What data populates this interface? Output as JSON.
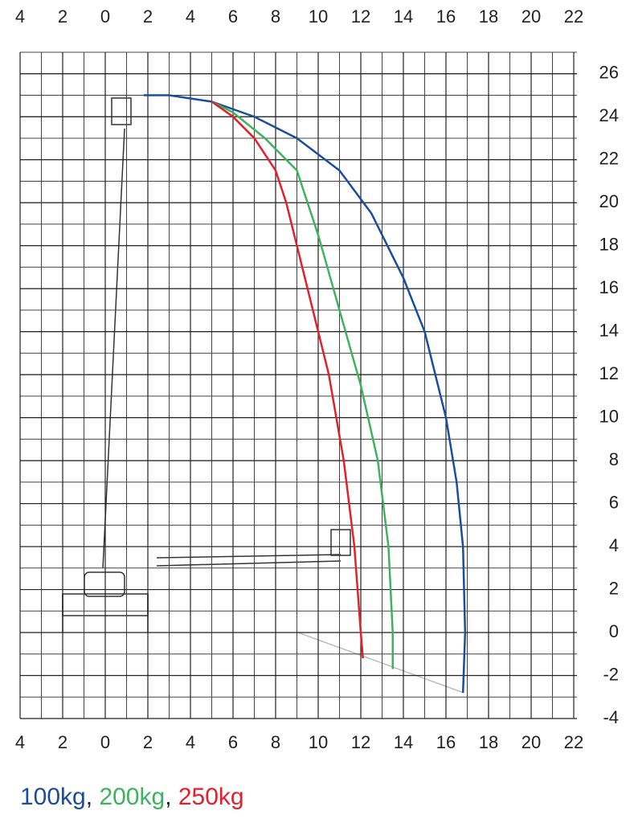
{
  "chart_data": {
    "type": "line",
    "xlim": [
      -4,
      22
    ],
    "ylim": [
      -4,
      27
    ],
    "xticks": [
      {
        "value": -4,
        "label": "4"
      },
      {
        "value": -2,
        "label": "2"
      },
      0,
      2,
      4,
      6,
      8,
      10,
      12,
      14,
      16,
      18,
      20,
      22
    ],
    "yticks": [
      -4,
      -2,
      0,
      2,
      4,
      6,
      8,
      10,
      12,
      14,
      16,
      18,
      20,
      22,
      24,
      26
    ],
    "grid": true,
    "minor_grid": true,
    "legend_separator": ",",
    "series": [
      {
        "name": "100kg",
        "color": "#1a4e9c",
        "x": [
          1.8,
          3,
          5,
          7,
          9,
          11,
          12.5,
          14,
          15,
          16,
          16.5,
          16.8,
          16.9,
          16.8
        ],
        "values": [
          25,
          25,
          24.7,
          24,
          23,
          21.5,
          19.5,
          16.5,
          14,
          10,
          7,
          4,
          0,
          -2.8
        ]
      },
      {
        "name": "200kg",
        "color": "#3cb35c",
        "x": [
          5,
          6,
          7.5,
          8.5,
          9,
          10,
          11,
          12,
          12.8,
          13.3,
          13.5,
          13.5
        ],
        "values": [
          24.7,
          24.2,
          23,
          22,
          21.5,
          18.5,
          15,
          11.5,
          8,
          4,
          0,
          -1.7
        ]
      },
      {
        "name": "250kg",
        "color": "#e3202a",
        "x": [
          5,
          6,
          7,
          8,
          8.5,
          9.5,
          10.5,
          11.2,
          11.7,
          12,
          12.1
        ],
        "values": [
          24.7,
          24,
          23,
          21.5,
          20,
          16,
          12,
          8,
          4,
          0,
          -1.2
        ]
      }
    ]
  }
}
